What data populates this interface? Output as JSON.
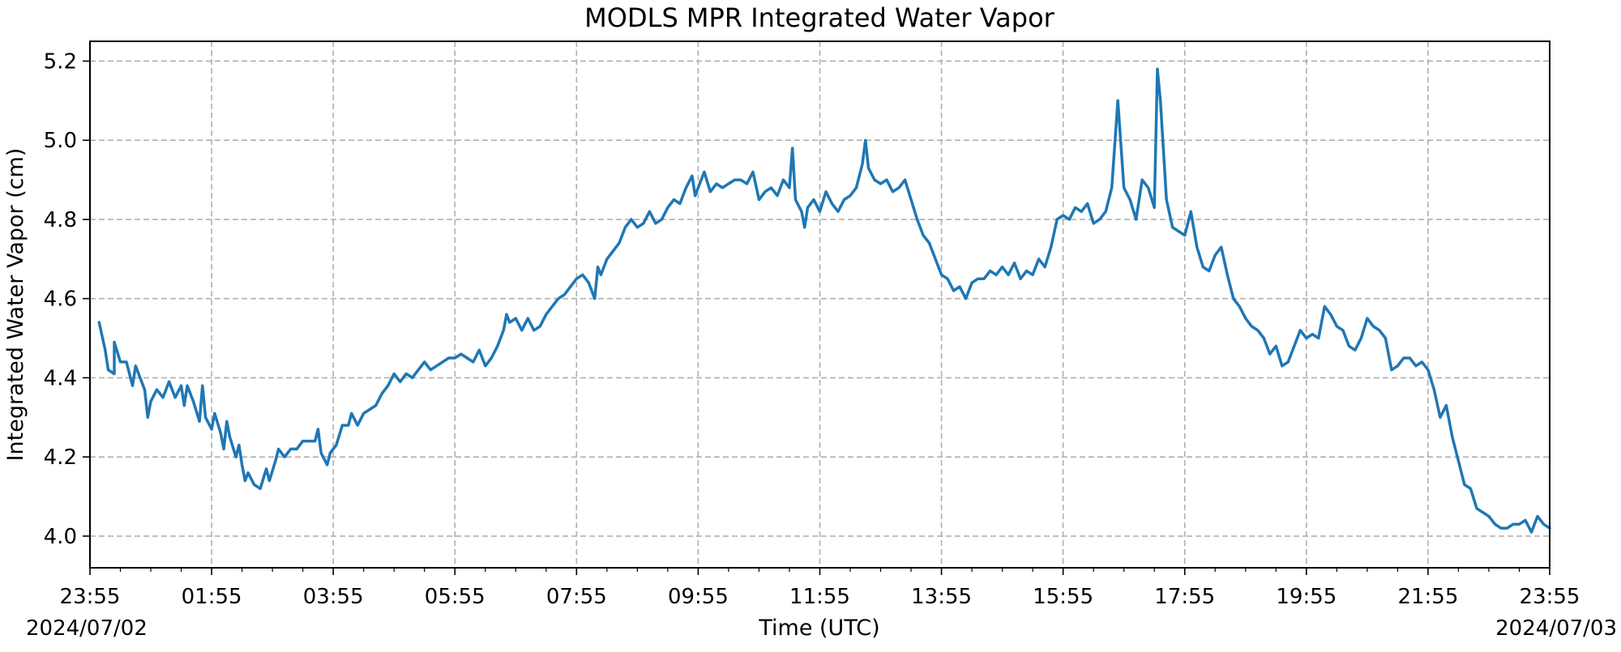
{
  "chart_data": {
    "type": "line",
    "title": "MODLS MPR Integrated Water Vapor",
    "xlabel": "Time (UTC)",
    "ylabel": "Integrated Water Vapor (cm)",
    "x_unit": "hours since 2024/07/02 23:55 UTC",
    "xlim": [
      0,
      24
    ],
    "ylim": [
      3.92,
      5.25
    ],
    "x_tick_labels": [
      "23:55",
      "01:55",
      "03:55",
      "05:55",
      "07:55",
      "09:55",
      "11:55",
      "13:55",
      "15:55",
      "17:55",
      "19:55",
      "21:55",
      "23:55"
    ],
    "y_ticks": [
      4.0,
      4.2,
      4.4,
      4.6,
      4.8,
      5.0,
      5.2
    ],
    "y_tick_labels": [
      "4.0",
      "4.2",
      "4.4",
      "4.6",
      "4.8",
      "5.0",
      "5.2"
    ],
    "date_labels": {
      "start": "2024/07/02",
      "end": "2024/07/03"
    },
    "grid": true,
    "series": [
      {
        "color": "#1f77b4",
        "points": [
          [
            0.15,
            4.54
          ],
          [
            0.25,
            4.47
          ],
          [
            0.3,
            4.42
          ],
          [
            0.4,
            4.41
          ],
          [
            0.4,
            4.49
          ],
          [
            0.5,
            4.44
          ],
          [
            0.6,
            4.44
          ],
          [
            0.7,
            4.38
          ],
          [
            0.75,
            4.43
          ],
          [
            0.8,
            4.41
          ],
          [
            0.9,
            4.37
          ],
          [
            0.95,
            4.3
          ],
          [
            1.0,
            4.34
          ],
          [
            1.1,
            4.37
          ],
          [
            1.2,
            4.35
          ],
          [
            1.3,
            4.39
          ],
          [
            1.4,
            4.35
          ],
          [
            1.5,
            4.38
          ],
          [
            1.55,
            4.33
          ],
          [
            1.6,
            4.38
          ],
          [
            1.7,
            4.34
          ],
          [
            1.8,
            4.29
          ],
          [
            1.85,
            4.38
          ],
          [
            1.9,
            4.3
          ],
          [
            2.0,
            4.27
          ],
          [
            2.05,
            4.31
          ],
          [
            2.15,
            4.26
          ],
          [
            2.2,
            4.22
          ],
          [
            2.25,
            4.29
          ],
          [
            2.3,
            4.25
          ],
          [
            2.4,
            4.2
          ],
          [
            2.45,
            4.23
          ],
          [
            2.5,
            4.18
          ],
          [
            2.55,
            4.14
          ],
          [
            2.6,
            4.16
          ],
          [
            2.7,
            4.13
          ],
          [
            2.8,
            4.12
          ],
          [
            2.9,
            4.17
          ],
          [
            2.95,
            4.14
          ],
          [
            3.05,
            4.19
          ],
          [
            3.1,
            4.22
          ],
          [
            3.2,
            4.2
          ],
          [
            3.3,
            4.22
          ],
          [
            3.4,
            4.22
          ],
          [
            3.5,
            4.24
          ],
          [
            3.6,
            4.24
          ],
          [
            3.7,
            4.24
          ],
          [
            3.75,
            4.27
          ],
          [
            3.8,
            4.21
          ],
          [
            3.9,
            4.18
          ],
          [
            3.95,
            4.21
          ],
          [
            4.05,
            4.23
          ],
          [
            4.15,
            4.28
          ],
          [
            4.25,
            4.28
          ],
          [
            4.3,
            4.31
          ],
          [
            4.4,
            4.28
          ],
          [
            4.5,
            4.31
          ],
          [
            4.6,
            4.32
          ],
          [
            4.7,
            4.33
          ],
          [
            4.8,
            4.36
          ],
          [
            4.9,
            4.38
          ],
          [
            5.0,
            4.41
          ],
          [
            5.1,
            4.39
          ],
          [
            5.2,
            4.41
          ],
          [
            5.3,
            4.4
          ],
          [
            5.4,
            4.42
          ],
          [
            5.5,
            4.44
          ],
          [
            5.6,
            4.42
          ],
          [
            5.7,
            4.43
          ],
          [
            5.8,
            4.44
          ],
          [
            5.9,
            4.45
          ],
          [
            6.0,
            4.45
          ],
          [
            6.1,
            4.46
          ],
          [
            6.2,
            4.45
          ],
          [
            6.3,
            4.44
          ],
          [
            6.4,
            4.47
          ],
          [
            6.5,
            4.43
          ],
          [
            6.6,
            4.45
          ],
          [
            6.7,
            4.48
          ],
          [
            6.8,
            4.52
          ],
          [
            6.85,
            4.56
          ],
          [
            6.9,
            4.54
          ],
          [
            7.0,
            4.55
          ],
          [
            7.1,
            4.52
          ],
          [
            7.2,
            4.55
          ],
          [
            7.3,
            4.52
          ],
          [
            7.4,
            4.53
          ],
          [
            7.5,
            4.56
          ],
          [
            7.6,
            4.58
          ],
          [
            7.7,
            4.6
          ],
          [
            7.8,
            4.61
          ],
          [
            7.9,
            4.63
          ],
          [
            8.0,
            4.65
          ],
          [
            8.1,
            4.66
          ],
          [
            8.2,
            4.64
          ],
          [
            8.3,
            4.6
          ],
          [
            8.35,
            4.68
          ],
          [
            8.4,
            4.66
          ],
          [
            8.5,
            4.7
          ],
          [
            8.6,
            4.72
          ],
          [
            8.7,
            4.74
          ],
          [
            8.8,
            4.78
          ],
          [
            8.9,
            4.8
          ],
          [
            9.0,
            4.78
          ],
          [
            9.1,
            4.79
          ],
          [
            9.2,
            4.82
          ],
          [
            9.3,
            4.79
          ],
          [
            9.4,
            4.8
          ],
          [
            9.5,
            4.83
          ],
          [
            9.6,
            4.85
          ],
          [
            9.7,
            4.84
          ],
          [
            9.8,
            4.88
          ],
          [
            9.9,
            4.91
          ],
          [
            9.95,
            4.86
          ],
          [
            10.0,
            4.88
          ],
          [
            10.1,
            4.92
          ],
          [
            10.2,
            4.87
          ],
          [
            10.3,
            4.89
          ],
          [
            10.4,
            4.88
          ],
          [
            10.5,
            4.89
          ],
          [
            10.6,
            4.9
          ],
          [
            10.7,
            4.9
          ],
          [
            10.8,
            4.89
          ],
          [
            10.9,
            4.92
          ],
          [
            11.0,
            4.85
          ],
          [
            11.1,
            4.87
          ],
          [
            11.2,
            4.88
          ],
          [
            11.3,
            4.86
          ],
          [
            11.4,
            4.9
          ],
          [
            11.5,
            4.88
          ],
          [
            11.55,
            4.98
          ],
          [
            11.6,
            4.85
          ],
          [
            11.7,
            4.82
          ],
          [
            11.75,
            4.78
          ],
          [
            11.8,
            4.83
          ],
          [
            11.9,
            4.85
          ],
          [
            12.0,
            4.82
          ],
          [
            12.1,
            4.87
          ],
          [
            12.2,
            4.84
          ],
          [
            12.3,
            4.82
          ],
          [
            12.4,
            4.85
          ],
          [
            12.5,
            4.86
          ],
          [
            12.6,
            4.88
          ],
          [
            12.7,
            4.94
          ],
          [
            12.75,
            5.0
          ],
          [
            12.8,
            4.93
          ],
          [
            12.9,
            4.9
          ],
          [
            13.0,
            4.89
          ],
          [
            13.1,
            4.9
          ],
          [
            13.2,
            4.87
          ],
          [
            13.3,
            4.88
          ],
          [
            13.4,
            4.9
          ],
          [
            13.5,
            4.85
          ],
          [
            13.6,
            4.8
          ],
          [
            13.7,
            4.76
          ],
          [
            13.8,
            4.74
          ],
          [
            13.9,
            4.7
          ],
          [
            14.0,
            4.66
          ],
          [
            14.1,
            4.65
          ],
          [
            14.2,
            4.62
          ],
          [
            14.3,
            4.63
          ],
          [
            14.4,
            4.6
          ],
          [
            14.5,
            4.64
          ],
          [
            14.6,
            4.65
          ],
          [
            14.7,
            4.65
          ],
          [
            14.8,
            4.67
          ],
          [
            14.9,
            4.66
          ],
          [
            15.0,
            4.68
          ],
          [
            15.1,
            4.66
          ],
          [
            15.2,
            4.69
          ],
          [
            15.3,
            4.65
          ],
          [
            15.4,
            4.67
          ],
          [
            15.5,
            4.66
          ],
          [
            15.6,
            4.7
          ],
          [
            15.7,
            4.68
          ],
          [
            15.8,
            4.73
          ],
          [
            15.9,
            4.8
          ],
          [
            16.0,
            4.81
          ],
          [
            16.1,
            4.8
          ],
          [
            16.2,
            4.83
          ],
          [
            16.3,
            4.82
          ],
          [
            16.4,
            4.84
          ],
          [
            16.5,
            4.79
          ],
          [
            16.6,
            4.8
          ],
          [
            16.7,
            4.82
          ],
          [
            16.8,
            4.88
          ],
          [
            16.9,
            5.1
          ],
          [
            17.0,
            4.88
          ],
          [
            17.1,
            4.85
          ],
          [
            17.2,
            4.8
          ],
          [
            17.3,
            4.9
          ],
          [
            17.4,
            4.88
          ],
          [
            17.5,
            4.83
          ],
          [
            17.55,
            5.18
          ],
          [
            17.6,
            5.1
          ],
          [
            17.7,
            4.85
          ],
          [
            17.8,
            4.78
          ],
          [
            17.9,
            4.77
          ],
          [
            18.0,
            4.76
          ],
          [
            18.1,
            4.82
          ],
          [
            18.2,
            4.73
          ],
          [
            18.3,
            4.68
          ],
          [
            18.4,
            4.67
          ],
          [
            18.5,
            4.71
          ],
          [
            18.6,
            4.73
          ],
          [
            18.7,
            4.66
          ],
          [
            18.8,
            4.6
          ],
          [
            18.9,
            4.58
          ],
          [
            19.0,
            4.55
          ],
          [
            19.1,
            4.53
          ],
          [
            19.2,
            4.52
          ],
          [
            19.3,
            4.5
          ],
          [
            19.4,
            4.46
          ],
          [
            19.5,
            4.48
          ],
          [
            19.6,
            4.43
          ],
          [
            19.7,
            4.44
          ],
          [
            19.8,
            4.48
          ],
          [
            19.9,
            4.52
          ],
          [
            20.0,
            4.5
          ],
          [
            20.1,
            4.51
          ],
          [
            20.2,
            4.5
          ],
          [
            20.3,
            4.58
          ],
          [
            20.4,
            4.56
          ],
          [
            20.5,
            4.53
          ],
          [
            20.6,
            4.52
          ],
          [
            20.7,
            4.48
          ],
          [
            20.8,
            4.47
          ],
          [
            20.9,
            4.5
          ],
          [
            21.0,
            4.55
          ],
          [
            21.1,
            4.53
          ],
          [
            21.2,
            4.52
          ],
          [
            21.3,
            4.5
          ],
          [
            21.4,
            4.42
          ],
          [
            21.5,
            4.43
          ],
          [
            21.6,
            4.45
          ],
          [
            21.7,
            4.45
          ],
          [
            21.8,
            4.43
          ],
          [
            21.9,
            4.44
          ],
          [
            22.0,
            4.42
          ],
          [
            22.1,
            4.37
          ],
          [
            22.2,
            4.3
          ],
          [
            22.3,
            4.33
          ],
          [
            22.4,
            4.25
          ],
          [
            22.5,
            4.19
          ],
          [
            22.6,
            4.13
          ],
          [
            22.7,
            4.12
          ],
          [
            22.8,
            4.07
          ],
          [
            22.9,
            4.06
          ],
          [
            23.0,
            4.05
          ],
          [
            23.1,
            4.03
          ],
          [
            23.2,
            4.02
          ],
          [
            23.3,
            4.02
          ],
          [
            23.4,
            4.03
          ],
          [
            23.5,
            4.03
          ],
          [
            23.6,
            4.04
          ],
          [
            23.7,
            4.01
          ],
          [
            23.8,
            4.05
          ],
          [
            23.9,
            4.03
          ],
          [
            24.0,
            4.02
          ]
        ]
      }
    ]
  }
}
